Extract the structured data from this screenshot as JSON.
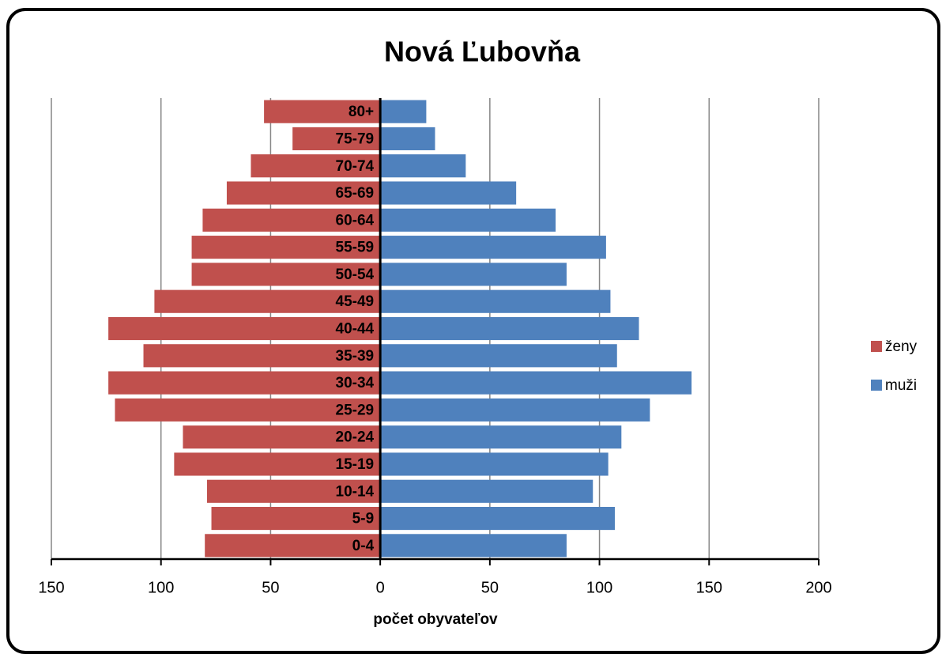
{
  "chart_data": {
    "type": "bar",
    "orientation": "horizontal",
    "title": "Nová Ľubovňa",
    "x_label": "počet obyvateľov",
    "categories": [
      "0-4",
      "5-9",
      "10-14",
      "15-19",
      "20-24",
      "25-29",
      "30-34",
      "35-39",
      "40-44",
      "45-49",
      "50-54",
      "55-59",
      "60-64",
      "65-69",
      "70-74",
      "75-79",
      "80+"
    ],
    "series": [
      {
        "name": "ženy",
        "color": "#c0504d",
        "values": [
          -80,
          -77,
          -79,
          -94,
          -90,
          -121,
          -124,
          -108,
          -124,
          -103,
          -86,
          -86,
          -81,
          -70,
          -59,
          -40,
          -53
        ]
      },
      {
        "name": "muži",
        "color": "#4f81bd",
        "values": [
          85,
          107,
          97,
          104,
          110,
          123,
          142,
          108,
          118,
          105,
          85,
          103,
          80,
          62,
          39,
          25,
          21
        ]
      }
    ],
    "xlim": [
      -150,
      200
    ],
    "xticks": [
      {
        "value": -150,
        "label": "150"
      },
      {
        "value": -100,
        "label": "100"
      },
      {
        "value": -50,
        "label": "50"
      },
      0,
      50,
      100,
      150,
      200
    ],
    "grid": true,
    "legend": "right"
  }
}
